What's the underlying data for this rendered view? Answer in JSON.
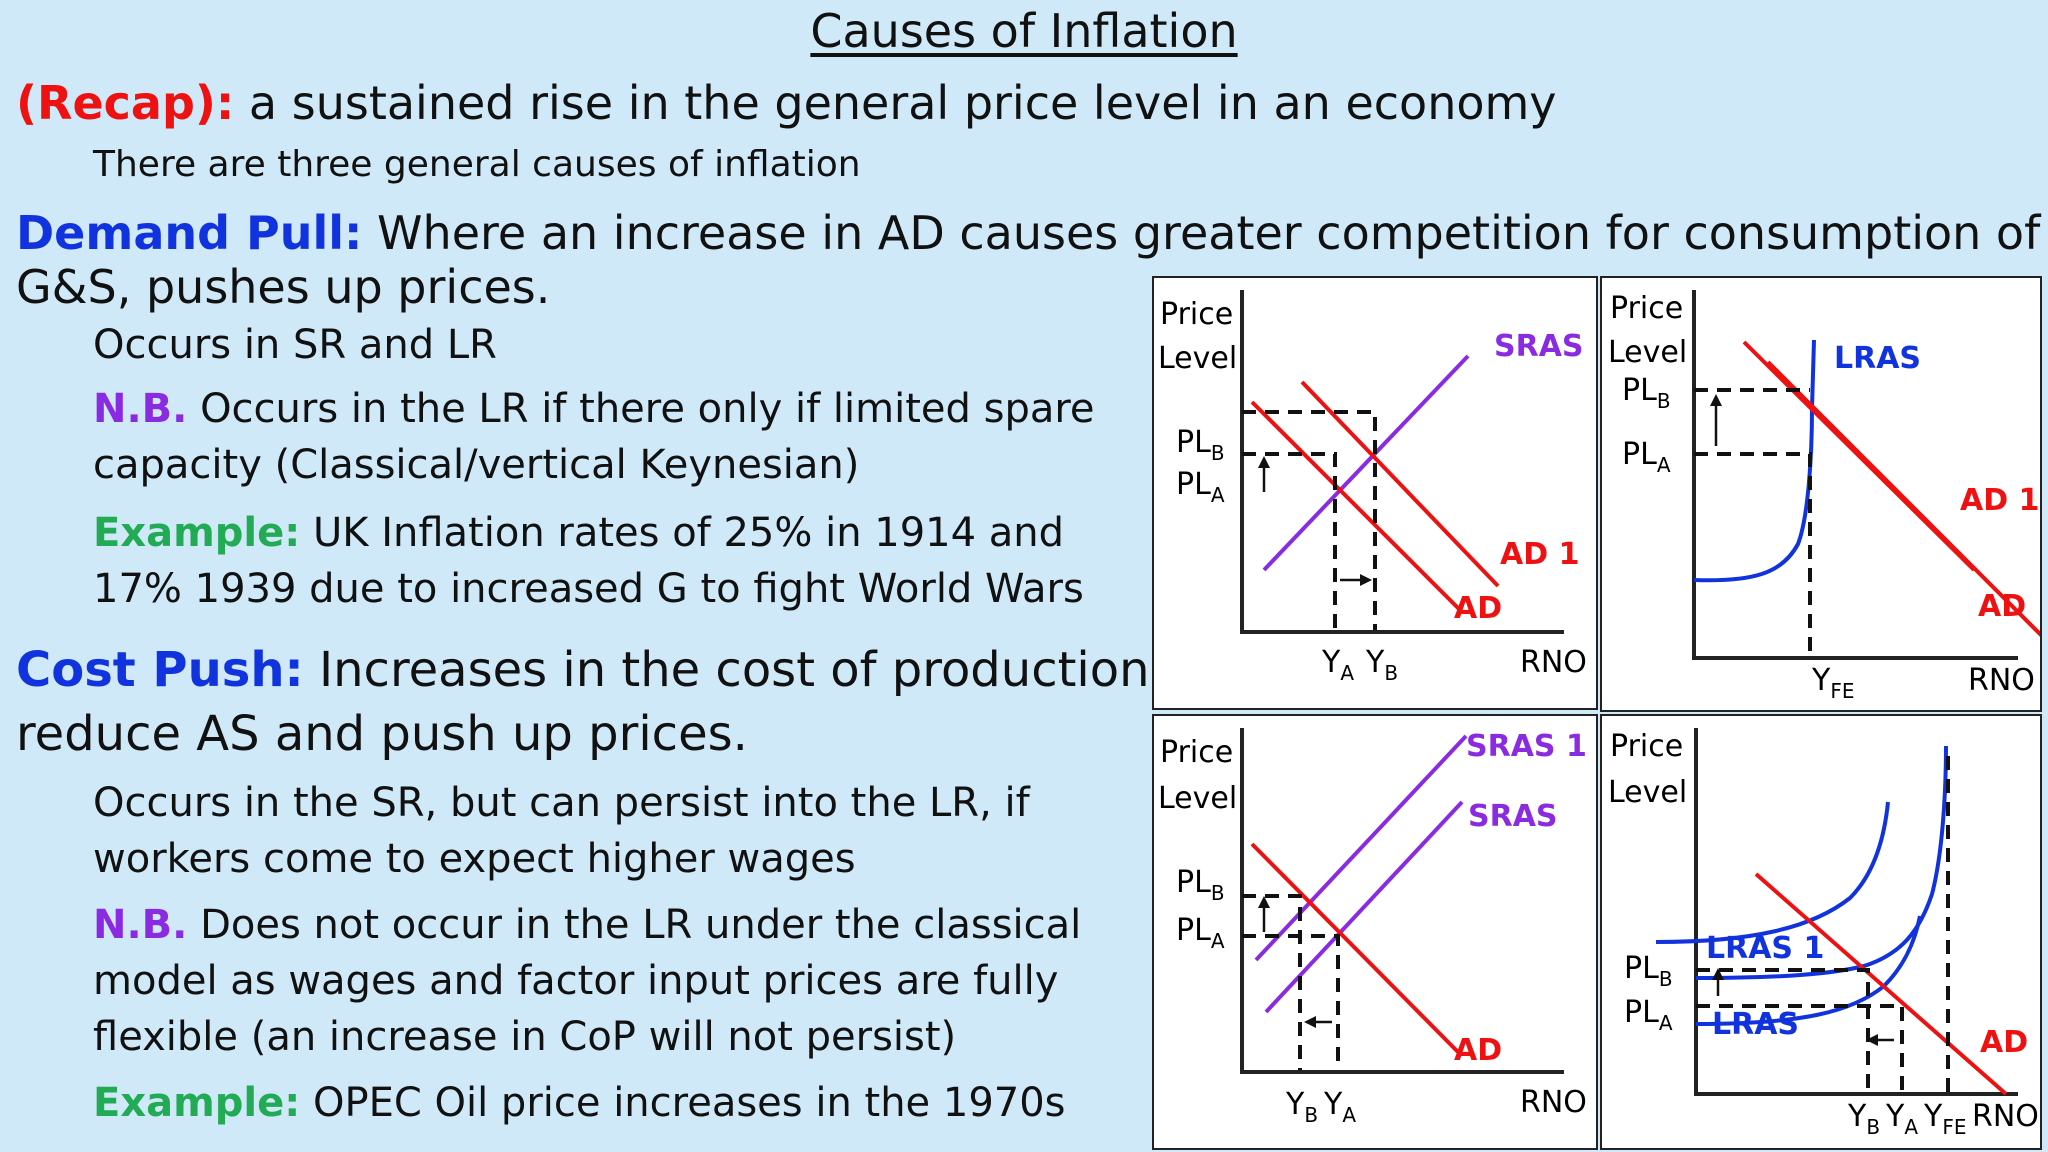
{
  "title": "Causes of Inflation",
  "recap": {
    "label": "(Recap):",
    "text": " a sustained rise in the general price level in an economy"
  },
  "intro": "There are three general causes of inflation",
  "demand_pull": {
    "label": "Demand Pull:",
    "text1": " Where an increase in AD causes greater competition for consumption of",
    "text2": "G&S, pushes up prices.",
    "occurs": "Occurs in SR and LR",
    "nb_label": "N.B.",
    "nb1": " Occurs in the LR if there only if limited spare",
    "nb2": "capacity (Classical/vertical Keynesian)",
    "ex_label": "Example:",
    "ex1": " UK Inflation rates of 25% in 1914 and",
    "ex2": "17% 1939 due to increased G to fight World Wars"
  },
  "cost_push": {
    "label": "Cost Push:",
    "text1": " Increases in the cost of production",
    "text2": "reduce AS and push up prices.",
    "occurs1": "Occurs in the SR, but can persist into the LR, if",
    "occurs2": "workers come to expect higher wages",
    "nb_label": "N.B.",
    "nb1": " Does not occur in the LR under the classical",
    "nb2": "model as wages and factor input prices are fully",
    "nb3": "flexible (an increase in CoP will not persist)",
    "ex_label": "Example:",
    "ex1": " OPEC Oil price increases in the 1970s"
  },
  "diagrams": {
    "d1": {
      "y1": "Price",
      "y2": "Level",
      "x": "RNO",
      "sras": "SRAS",
      "ad": "AD",
      "ad1": "AD 1",
      "pl": "PL",
      "y": "Y",
      "a": "A",
      "b": "B"
    },
    "d2": {
      "y1": "Price",
      "y2": "Level",
      "x": "RNO",
      "lras": "LRAS",
      "ad": "AD",
      "ad1": "AD 1",
      "pl": "PL",
      "y": "Y",
      "a": "A",
      "b": "B",
      "fe": "FE"
    },
    "d3": {
      "y1": "Price",
      "y2": "Level",
      "x": "RNO",
      "sras": "SRAS",
      "sras1": "SRAS 1",
      "ad": "AD",
      "pl": "PL",
      "y": "Y",
      "a": "A",
      "b": "B"
    },
    "d4": {
      "y1": "Price",
      "y2": "Level",
      "x": "RNO",
      "lras": "LRAS",
      "lras1": "LRAS 1",
      "ad": "AD",
      "pl": "PL",
      "y": "Y",
      "a": "A",
      "b": "B",
      "fe": "FE"
    }
  },
  "colors": {
    "red": "#ee1111",
    "blue": "#1133dd",
    "purple": "#8a2be2",
    "green": "#22aa55"
  }
}
